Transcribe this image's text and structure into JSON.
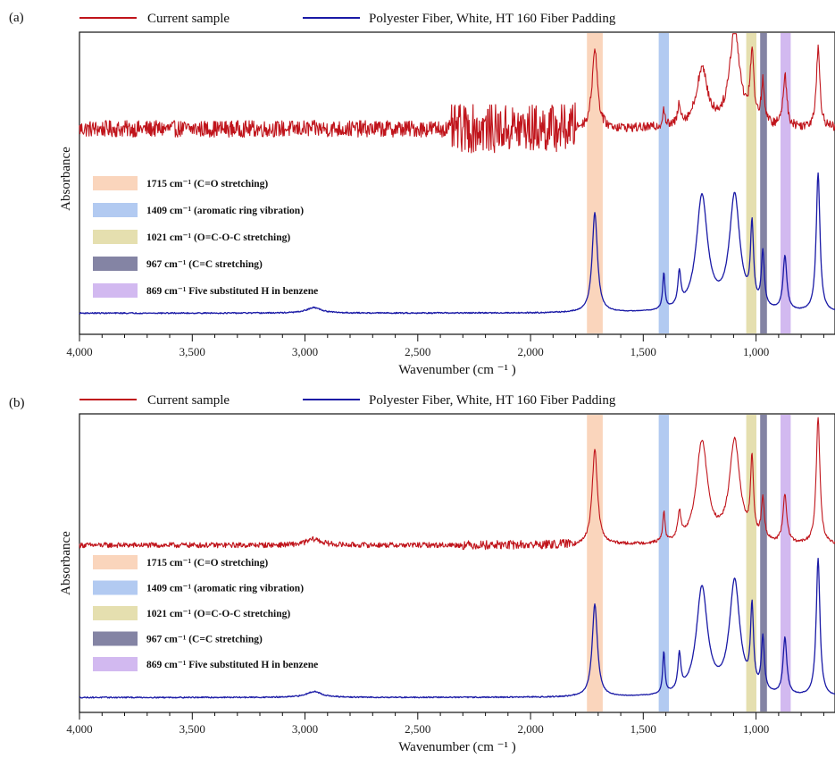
{
  "colors": {
    "current_sample": "#c0141b",
    "reference": "#1a1aa6",
    "band_1715": "#f6b98f",
    "band_1409": "#7fa7e8",
    "band_1021": "#d4c97a",
    "band_967": "#5b5b86",
    "band_869": "#b48be6"
  },
  "chart_data": [
    {
      "panel": "(a)",
      "type": "line",
      "xlabel": "Wavenumber (cm ⁻¹ )",
      "ylabel": "Absorbance",
      "xlim": [
        4000,
        650
      ],
      "xticks": [
        4000,
        3500,
        3000,
        2500,
        2000,
        1500,
        1000
      ],
      "xtick_labels": [
        "4,000",
        "3,500",
        "3,000",
        "2,500",
        "2,000",
        "1,500",
        "1,000"
      ],
      "legend": [
        "Current sample",
        "Polyester Fiber, White, HT 160 Fiber Padding"
      ],
      "bands": [
        {
          "center": 1715,
          "width": 70,
          "label_bold": "1715 cm⁻¹",
          "label_rest": " (C=O stretching)"
        },
        {
          "center": 1409,
          "width": 45,
          "label_bold": "1409 cm⁻¹",
          "label_rest": " (aromatic ring vibration)"
        },
        {
          "center": 1021,
          "width": 45,
          "label_bold": "1021 cm⁻¹",
          "label_rest": " (O=C-O-C stretching)"
        },
        {
          "center": 967,
          "width": 30,
          "label_bold": "967 cm⁻¹",
          "label_rest": " (C=C stretching)"
        },
        {
          "center": 869,
          "width": 45,
          "label_bold": "869 cm⁻¹",
          "label_rest": " Five substituted  H in benzene"
        }
      ],
      "series": [
        {
          "name": "Current sample",
          "baseline": 0.68,
          "noise": 0.055,
          "noise_regions": [
            [
              2350,
              1800,
              0.16
            ]
          ],
          "peaks": [
            [
              1715,
              0.27,
              14
            ],
            [
              1409,
              0.06,
              6
            ],
            [
              1340,
              0.07,
              8
            ],
            [
              1240,
              0.19,
              30
            ],
            [
              1095,
              0.32,
              28
            ],
            [
              1018,
              0.22,
              10
            ],
            [
              970,
              0.14,
              8
            ],
            [
              872,
              0.17,
              10
            ],
            [
              725,
              0.26,
              10
            ]
          ]
        },
        {
          "name": "Polyester Fiber, White, HT 160 Fiber Padding",
          "baseline": 0.07,
          "noise": 0.004,
          "noise_regions": [],
          "peaks": [
            [
              2960,
              0.018,
              40
            ],
            [
              1715,
              0.33,
              14
            ],
            [
              1409,
              0.12,
              6
            ],
            [
              1340,
              0.11,
              8
            ],
            [
              1240,
              0.38,
              30
            ],
            [
              1095,
              0.38,
              28
            ],
            [
              1018,
              0.26,
              8
            ],
            [
              970,
              0.18,
              8
            ],
            [
              872,
              0.18,
              10
            ],
            [
              725,
              0.46,
              10
            ]
          ]
        }
      ]
    },
    {
      "panel": "(b)",
      "type": "line",
      "xlabel": "Wavenumber (cm ⁻¹ )",
      "ylabel": "Absorbance",
      "xlim": [
        4000,
        650
      ],
      "xticks": [
        4000,
        3500,
        3000,
        2500,
        2000,
        1500,
        1000
      ],
      "xtick_labels": [
        "4,000",
        "3,500",
        "3,000",
        "2,500",
        "2,000",
        "1,500",
        "1,000"
      ],
      "legend": [
        "Current sample",
        "Polyester Fiber, White, HT 160 Fiber Padding"
      ],
      "bands": [
        {
          "center": 1715,
          "width": 70,
          "label_bold": "1715 cm⁻¹",
          "label_rest": " (C=O stretching)"
        },
        {
          "center": 1409,
          "width": 45,
          "label_bold": "1409 cm⁻¹",
          "label_rest": " (aromatic ring vibration)"
        },
        {
          "center": 1021,
          "width": 45,
          "label_bold": "1021 cm⁻¹",
          "label_rest": " (O=C-O-C stretching)"
        },
        {
          "center": 967,
          "width": 30,
          "label_bold": "967 cm⁻¹",
          "label_rest": " (C=C stretching)"
        },
        {
          "center": 869,
          "width": 45,
          "label_bold": "869 cm⁻¹",
          "label_rest": " Five substituted  H in benzene"
        }
      ],
      "series": [
        {
          "name": "Current sample",
          "baseline": 0.56,
          "noise": 0.018,
          "noise_regions": [
            [
              2300,
              1800,
              0.03
            ]
          ],
          "peaks": [
            [
              2960,
              0.02,
              40
            ],
            [
              1715,
              0.32,
              14
            ],
            [
              1409,
              0.1,
              6
            ],
            [
              1340,
              0.09,
              8
            ],
            [
              1240,
              0.34,
              30
            ],
            [
              1095,
              0.34,
              28
            ],
            [
              1018,
              0.26,
              8
            ],
            [
              970,
              0.14,
              8
            ],
            [
              872,
              0.16,
              10
            ],
            [
              725,
              0.42,
              10
            ]
          ]
        },
        {
          "name": "Polyester Fiber, White, HT 160 Fiber Padding",
          "baseline": 0.05,
          "noise": 0.004,
          "noise_regions": [],
          "peaks": [
            [
              2960,
              0.02,
              40
            ],
            [
              1715,
              0.31,
              14
            ],
            [
              1409,
              0.14,
              6
            ],
            [
              1340,
              0.12,
              8
            ],
            [
              1240,
              0.36,
              30
            ],
            [
              1095,
              0.38,
              28
            ],
            [
              1018,
              0.27,
              8
            ],
            [
              970,
              0.18,
              8
            ],
            [
              872,
              0.19,
              10
            ],
            [
              725,
              0.46,
              10
            ]
          ]
        }
      ]
    }
  ]
}
